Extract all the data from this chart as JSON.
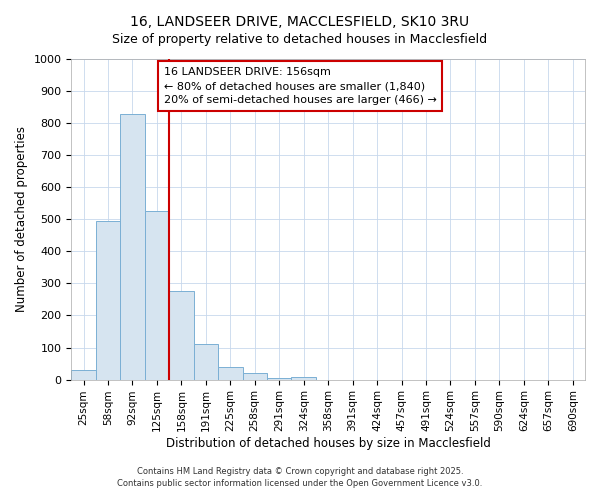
{
  "title_line1": "16, LANDSEER DRIVE, MACCLESFIELD, SK10 3RU",
  "title_line2": "Size of property relative to detached houses in Macclesfield",
  "xlabel": "Distribution of detached houses by size in Macclesfield",
  "ylabel": "Number of detached properties",
  "bar_labels": [
    "25sqm",
    "58sqm",
    "92sqm",
    "125sqm",
    "158sqm",
    "191sqm",
    "225sqm",
    "258sqm",
    "291sqm",
    "324sqm",
    "358sqm",
    "391sqm",
    "424sqm",
    "457sqm",
    "491sqm",
    "524sqm",
    "557sqm",
    "590sqm",
    "624sqm",
    "657sqm",
    "690sqm"
  ],
  "bar_values": [
    30,
    495,
    830,
    525,
    275,
    110,
    40,
    20,
    5,
    8,
    0,
    0,
    0,
    0,
    0,
    0,
    0,
    0,
    0,
    0,
    0
  ],
  "bar_color": "#d6e4f0",
  "bar_edgecolor": "#7bafd4",
  "vline_position": 3.5,
  "annotation_title": "16 LANDSEER DRIVE: 156sqm",
  "annotation_line1": "← 80% of detached houses are smaller (1,840)",
  "annotation_line2": "20% of semi-detached houses are larger (466) →",
  "annotation_box_color": "#ffffff",
  "annotation_box_edgecolor": "#cc0000",
  "vline_color": "#cc0000",
  "ylim": [
    0,
    1000
  ],
  "yticks": [
    0,
    100,
    200,
    300,
    400,
    500,
    600,
    700,
    800,
    900,
    1000
  ],
  "footnote1": "Contains HM Land Registry data © Crown copyright and database right 2025.",
  "footnote2": "Contains public sector information licensed under the Open Government Licence v3.0.",
  "background_color": "#ffffff",
  "grid_color": "#c8d8ec",
  "title_fontsize": 10,
  "subtitle_fontsize": 9
}
